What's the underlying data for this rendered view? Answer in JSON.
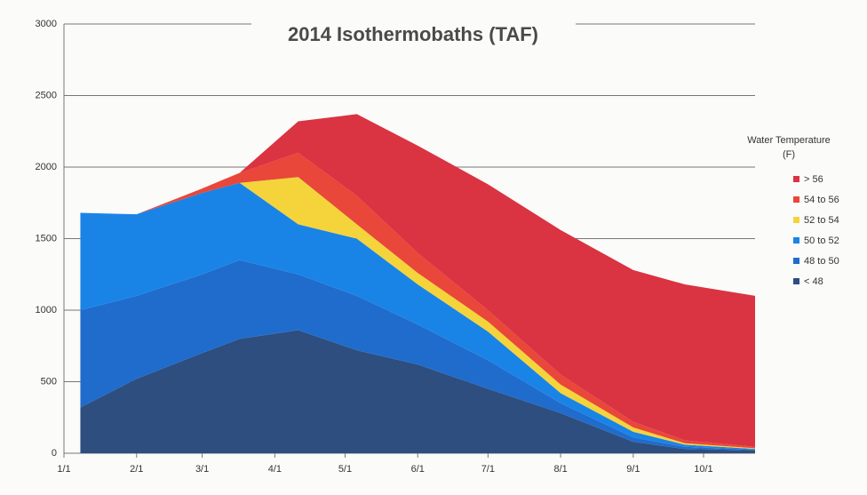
{
  "chart_data": {
    "type": "stacked_area",
    "title": "2014 Isothermobaths (TAF)",
    "legend_title": "Water Temperature (F)",
    "x": [
      7,
      31,
      59,
      75,
      100,
      125,
      151,
      181,
      212,
      243,
      265,
      295
    ],
    "xlim": [
      0,
      295
    ],
    "xticks": [
      {
        "value": 0,
        "label": "1/1"
      },
      {
        "value": 31,
        "label": "2/1"
      },
      {
        "value": 59,
        "label": "3/1"
      },
      {
        "value": 90,
        "label": "4/1"
      },
      {
        "value": 120,
        "label": "5/1"
      },
      {
        "value": 151,
        "label": "6/1"
      },
      {
        "value": 181,
        "label": "7/1"
      },
      {
        "value": 212,
        "label": "8/1"
      },
      {
        "value": 243,
        "label": "9/1"
      },
      {
        "value": 273,
        "label": "10/1"
      }
    ],
    "ylim": [
      0,
      3000
    ],
    "yticks": [
      0,
      500,
      1000,
      1500,
      2000,
      2500,
      3000
    ],
    "grid": true,
    "series": [
      {
        "name": "< 48",
        "color": "#2d4e7e",
        "values": [
          320,
          520,
          700,
          800,
          860,
          720,
          620,
          450,
          280,
          80,
          30,
          20
        ]
      },
      {
        "name": "48 to 50",
        "color": "#1f6ccc",
        "values": [
          680,
          580,
          550,
          550,
          390,
          380,
          280,
          200,
          70,
          30,
          15,
          5
        ]
      },
      {
        "name": "50 to 52",
        "color": "#1a84e6",
        "values": [
          680,
          570,
          570,
          540,
          350,
          400,
          280,
          200,
          70,
          40,
          15,
          5
        ]
      },
      {
        "name": "52 to 54",
        "color": "#f4d43a",
        "values": [
          0,
          0,
          0,
          0,
          330,
          100,
          80,
          70,
          60,
          30,
          10,
          5
        ]
      },
      {
        "name": "54 to 56",
        "color": "#e8473a",
        "values": [
          0,
          0,
          30,
          70,
          170,
          200,
          140,
          80,
          70,
          40,
          20,
          10
        ]
      },
      {
        "name": "> 56",
        "color": "#da3341",
        "values": [
          0,
          0,
          0,
          0,
          220,
          570,
          750,
          880,
          1010,
          1060,
          1090,
          1055
        ]
      }
    ]
  }
}
